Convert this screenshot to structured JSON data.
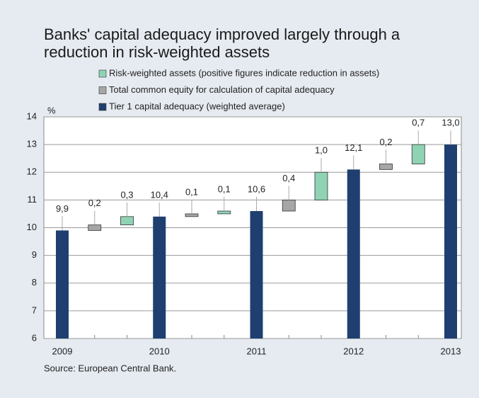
{
  "chart_data": {
    "type": "waterfall",
    "title": [
      "Banks' capital adequacy improved largely through a",
      "reduction in risk-weighted assets"
    ],
    "y_label": "%",
    "source": "Source: European Central Bank.",
    "categories": [
      "2009",
      null,
      null,
      "2010",
      null,
      null,
      "2011",
      null,
      null,
      "2012",
      null,
      null,
      "2013"
    ],
    "series": [
      {
        "name": "Risk-weighted assets (positive figures indicate reduction in assets)",
        "color": "#8fd3b4",
        "role": "increment",
        "values": [
          null,
          null,
          0.3,
          null,
          null,
          0.1,
          null,
          null,
          1.0,
          null,
          null,
          0.7,
          null
        ],
        "value_labels": [
          null,
          null,
          "0,3",
          null,
          null,
          "0,1",
          null,
          null,
          "1,0",
          null,
          null,
          "0,7",
          null
        ]
      },
      {
        "name": "Total common equity for calculation of capital adequacy",
        "color": "#a6a6a6",
        "role": "increment",
        "values": [
          null,
          0.2,
          null,
          null,
          0.1,
          null,
          null,
          0.4,
          null,
          null,
          0.2,
          null,
          null
        ],
        "value_labels": [
          null,
          "0,2",
          null,
          null,
          "0,1",
          null,
          null,
          "0,4",
          null,
          null,
          "0,2",
          null,
          null
        ]
      },
      {
        "name": "Tier 1 capital adequacy (weighted average)",
        "color": "#1f3f70",
        "role": "total",
        "values": [
          9.9,
          null,
          null,
          10.4,
          null,
          null,
          10.6,
          null,
          null,
          12.1,
          null,
          null,
          13.0
        ],
        "value_labels": [
          "9,9",
          null,
          null,
          "10,4",
          null,
          null,
          "10,6",
          null,
          null,
          "12,1",
          null,
          null,
          "13,0"
        ]
      }
    ],
    "ylim": [
      6,
      14
    ],
    "yticks": [
      6,
      7,
      8,
      9,
      10,
      11,
      12,
      13,
      14
    ],
    "grid": true
  }
}
